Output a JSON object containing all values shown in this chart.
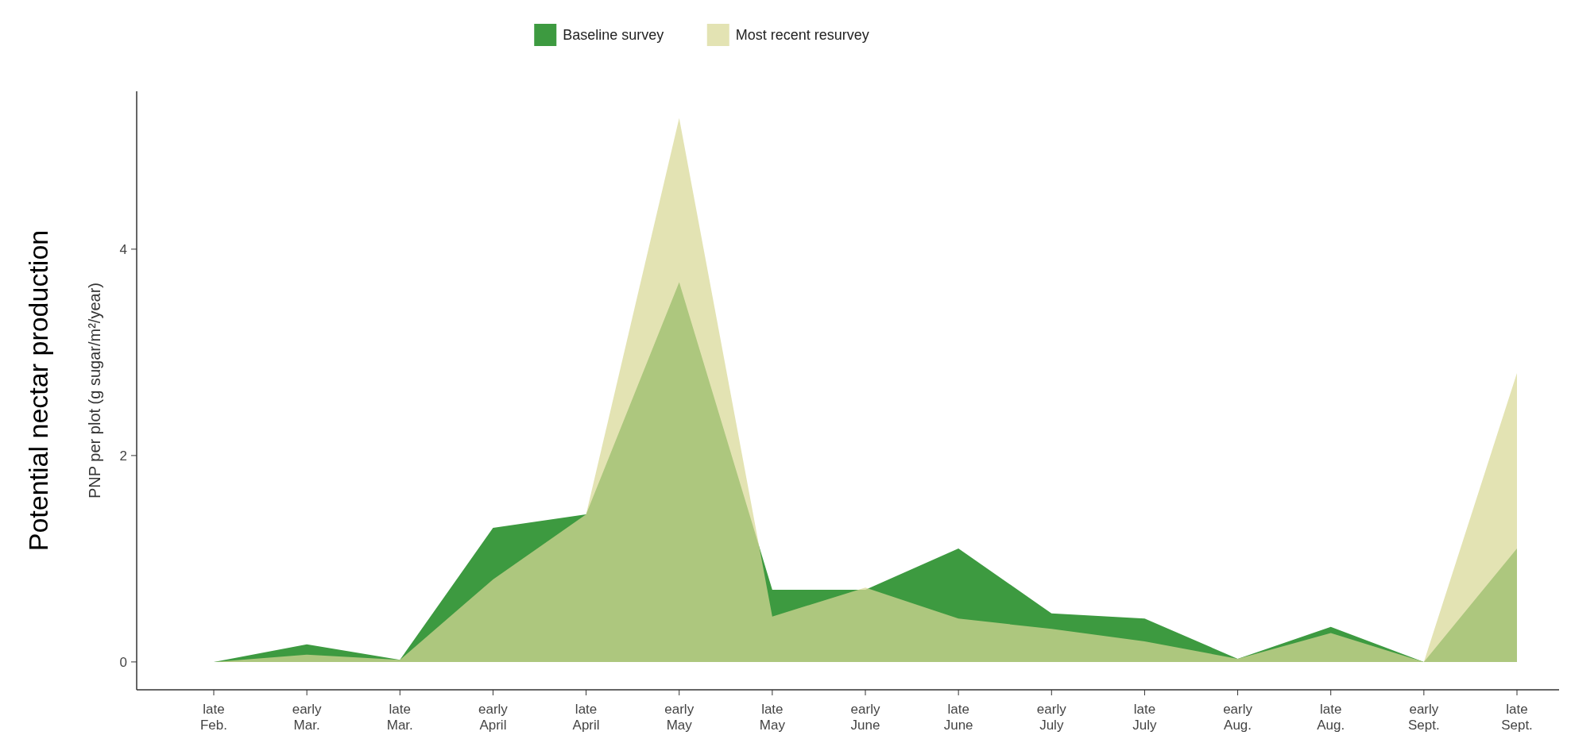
{
  "chart_data": {
    "type": "area",
    "ylabel": "PNP per plot (g sugar/m²/year)",
    "annotations": [
      "Potential nectar production"
    ],
    "categories": [
      "late Feb.",
      "early Mar.",
      "late Mar.",
      "early April",
      "late April",
      "early May",
      "late May",
      "early June",
      "late June",
      "early July",
      "late July",
      "early Aug.",
      "late Aug.",
      "early Sept.",
      "late Sept."
    ],
    "series": [
      {
        "name": "Baseline survey",
        "color": "#3d9a40",
        "values": [
          0,
          0.17,
          0.02,
          1.3,
          1.43,
          3.68,
          0.7,
          0.7,
          1.1,
          0.47,
          0.42,
          0.03,
          0.34,
          0,
          1.1
        ]
      },
      {
        "name": "Most recent resurvey",
        "color": "#d8d896",
        "values": [
          0,
          0.07,
          0.02,
          0.8,
          1.43,
          5.27,
          0.44,
          0.72,
          0.42,
          0.32,
          0.2,
          0.03,
          0.28,
          0,
          2.8
        ]
      }
    ],
    "ylim": [
      -0.27,
      5.53
    ],
    "yticks": [
      0,
      2,
      4
    ],
    "grid": false,
    "legend": "top"
  }
}
